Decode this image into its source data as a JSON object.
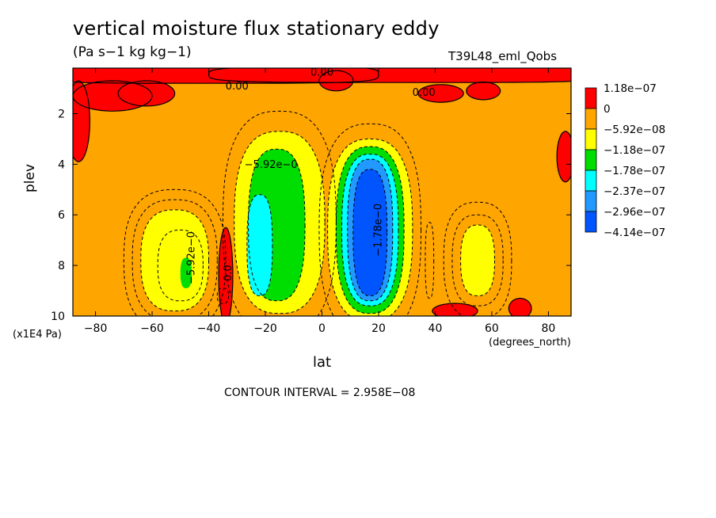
{
  "chart_data": {
    "type": "heatmap",
    "title": "vertical moisture flux stationary eddy",
    "units": "(Pa s−1 kg kg−1)",
    "run_label": "T39L48_eml_Qobs",
    "xlabel": "lat",
    "x_unit": "(degrees_north)",
    "ylabel": "plev",
    "y_unit": "(x1E4 Pa)",
    "xlim": [
      -88,
      88
    ],
    "ylim": [
      10,
      0.2
    ],
    "x_ticks": [
      "−80",
      "−60",
      "−40",
      "−20",
      "0",
      "20",
      "40",
      "60",
      "80"
    ],
    "x_tick_values": [
      -80,
      -60,
      -40,
      -20,
      0,
      20,
      40,
      60,
      80
    ],
    "y_ticks": [
      "2",
      "4",
      "6",
      "8",
      "10"
    ],
    "y_tick_values": [
      2,
      4,
      6,
      8,
      10
    ],
    "contour_interval_text": "CONTOUR INTERVAL = 2.958E−08",
    "contour_labels": [
      "0.00",
      "0.00",
      "0.00",
      "−5.92e−0",
      "−5.92e−0",
      "0.0",
      "−1.78e−0"
    ],
    "legend": [
      {
        "label": "1.18e−07",
        "color": "#ff0000"
      },
      {
        "label": "0",
        "color": "#ffa500"
      },
      {
        "label": "−5.92e−08",
        "color": "#ffff00"
      },
      {
        "label": "−1.18e−07",
        "color": "#00dd00"
      },
      {
        "label": "−1.78e−07",
        "color": "#00ffff"
      },
      {
        "label": "−2.37e−07",
        "color": "#2299ff"
      },
      {
        "label": "−2.96e−07",
        "color": "#0055ff"
      },
      {
        "label": "−4.14e−07",
        "color": ""
      }
    ],
    "background_level_color": "#ffa500",
    "features": [
      {
        "name": "southern-subtropical-min",
        "lat": -15,
        "plev": 7.2,
        "min_level": -1.78e-07
      },
      {
        "name": "northern-tropical-min",
        "lat": 17,
        "plev": 6.7,
        "min_level": -2.96e-07
      },
      {
        "name": "southern-midlat-min",
        "lat": -52,
        "plev": 7.8,
        "min_level": -1.18e-07
      },
      {
        "name": "northern-midlat-min",
        "lat": 55,
        "plev": 7.8,
        "min_level": -5.92e-08
      }
    ]
  }
}
